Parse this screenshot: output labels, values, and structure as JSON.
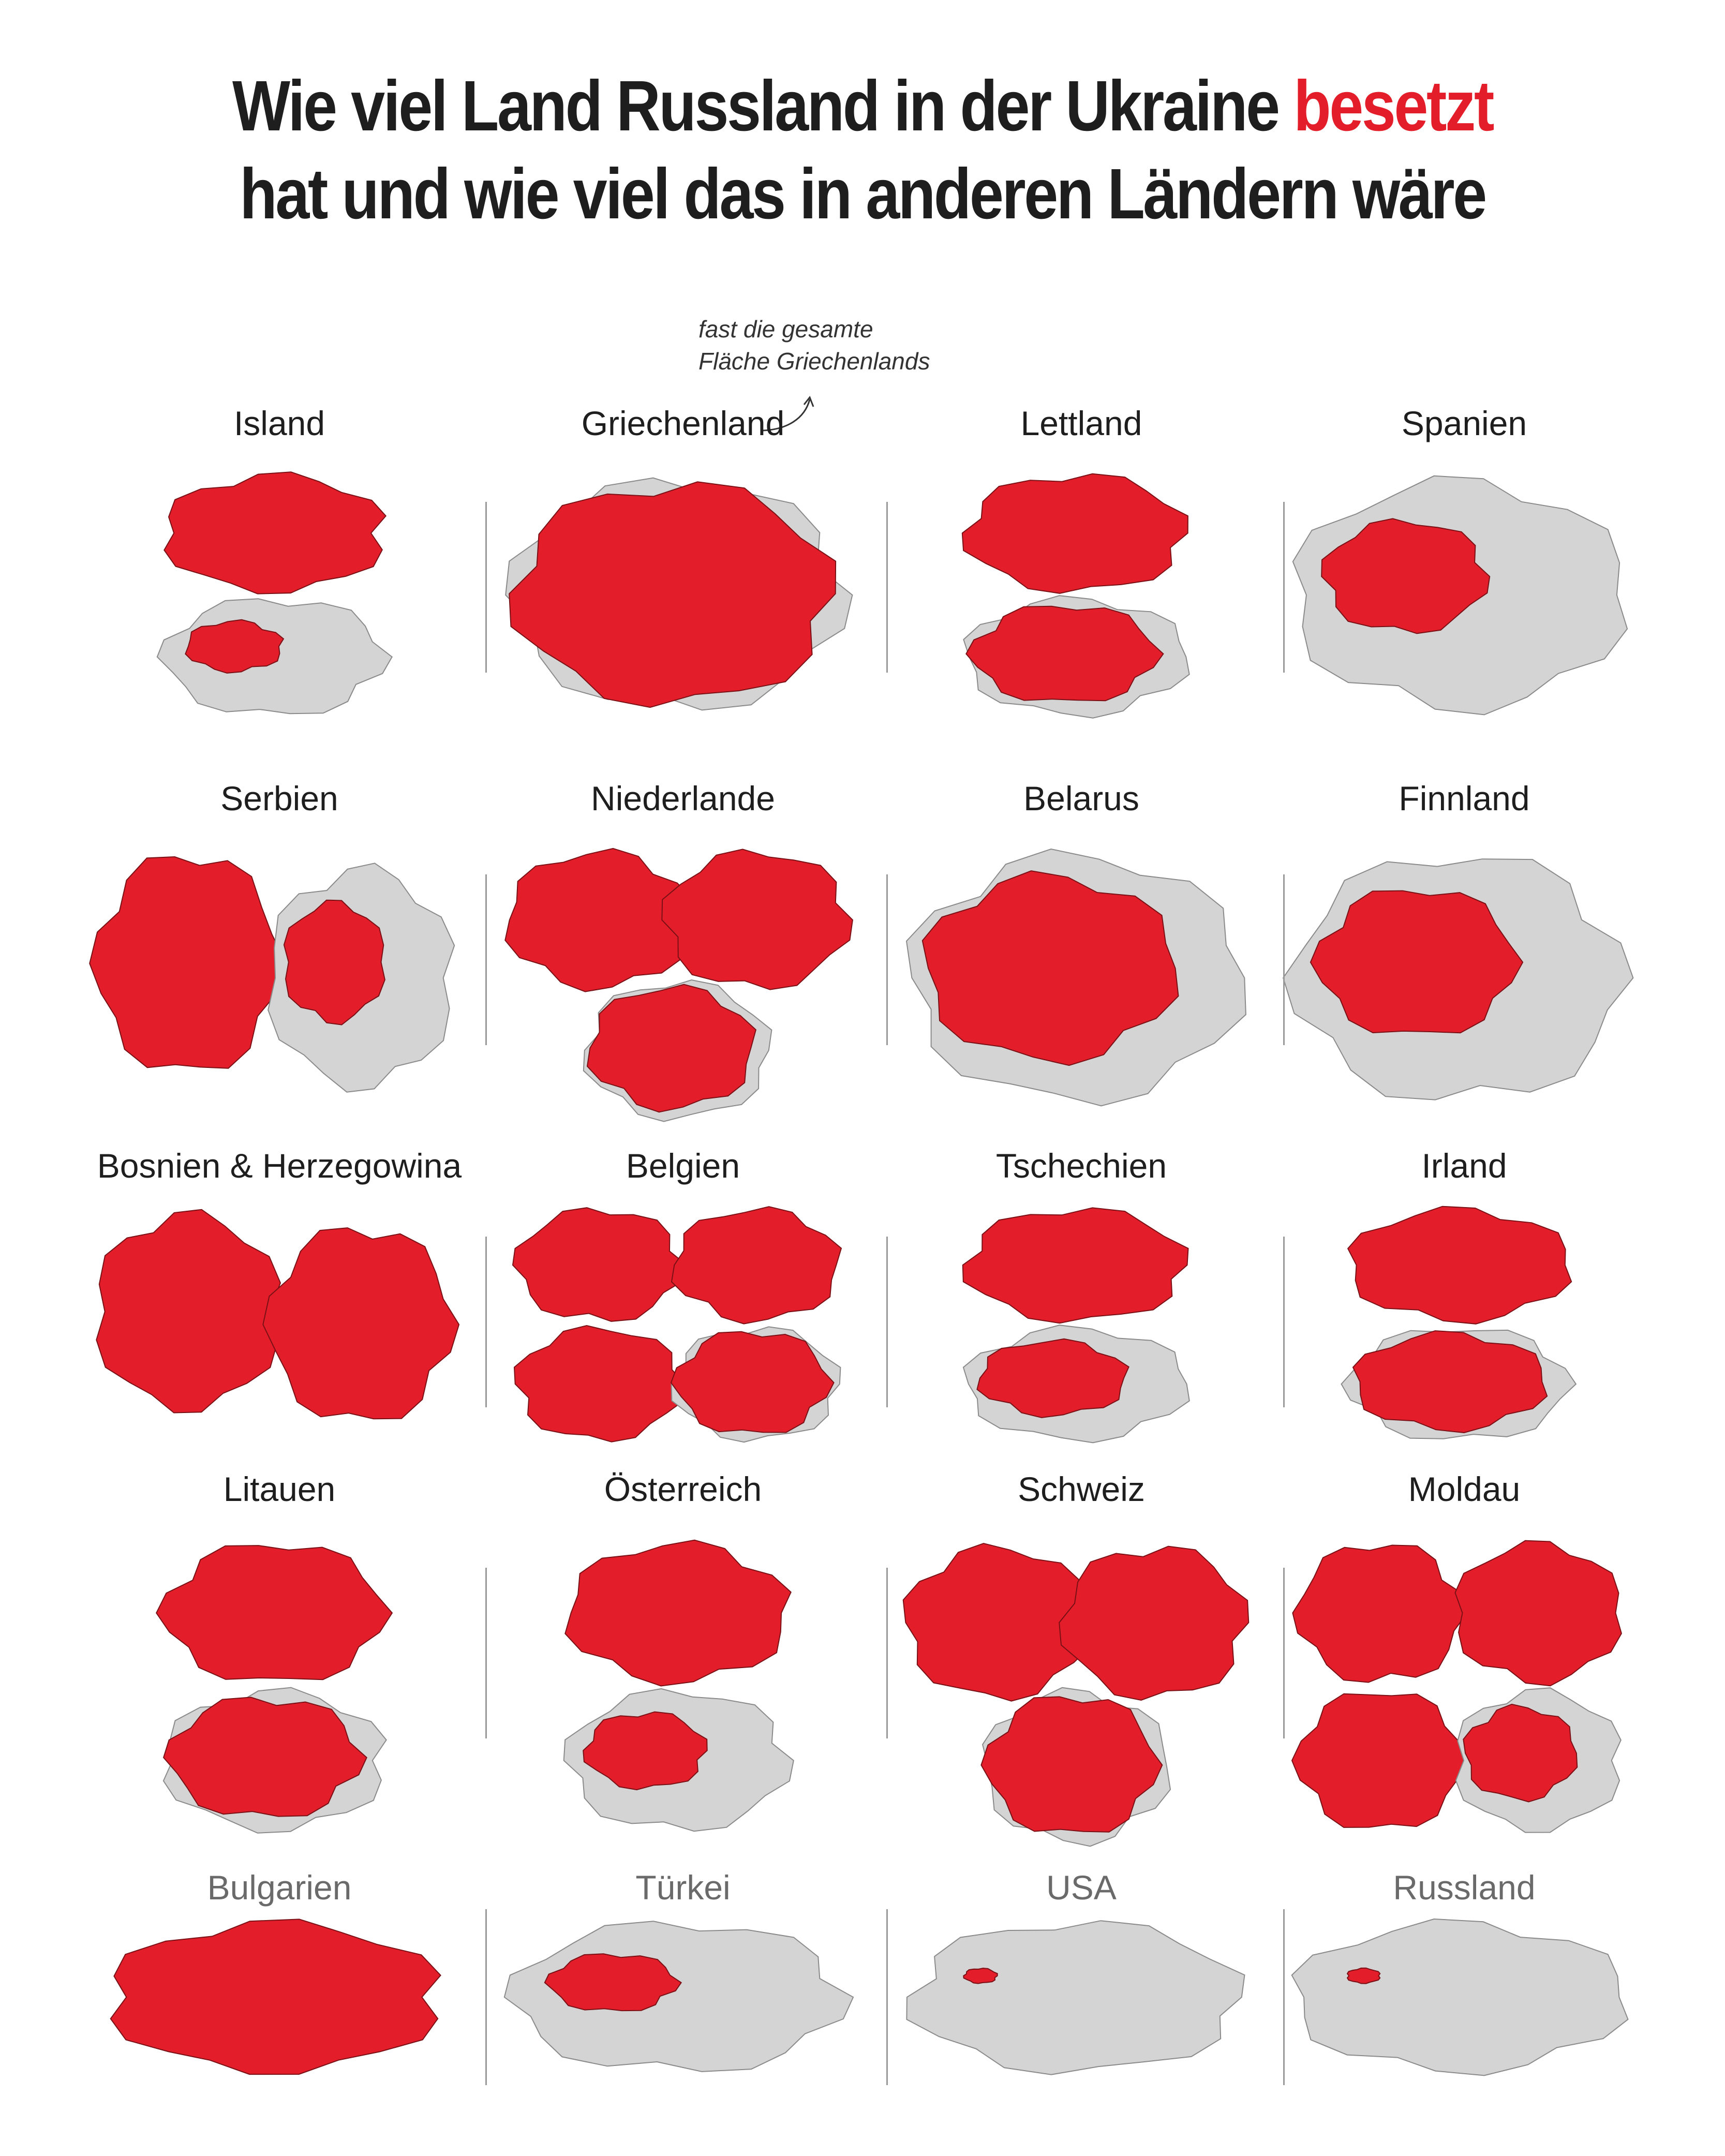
{
  "title": {
    "line1_prefix": "Wie viel Land Russland in der Ukraine",
    "line1_highlight": "besetzt",
    "line2": "hat und wie viel das in anderen Ländern wäre"
  },
  "annotation": {
    "line1": "fast die gesamte",
    "line2": "Fläche Griechenlands"
  },
  "colors": {
    "occupied": "#e31e2a",
    "remaining": "#d4d4d4",
    "text": "#1e1e1e",
    "dim_text": "#6a6a6a"
  },
  "countries": [
    {
      "name": "Island",
      "maps": [
        {
          "share": 1.0
        },
        {
          "share": 0.19
        }
      ]
    },
    {
      "name": "Griechenland",
      "maps": [
        {
          "share": 0.93
        }
      ]
    },
    {
      "name": "Lettland",
      "maps": [
        {
          "share": 1.0
        },
        {
          "share": 0.7
        }
      ]
    },
    {
      "name": "Spanien",
      "maps": [
        {
          "share": 0.24
        }
      ]
    },
    {
      "name": "Serbien",
      "maps": [
        {
          "share": 1.0
        },
        {
          "share": 0.3
        }
      ]
    },
    {
      "name": "Niederlande",
      "maps": [
        {
          "share": 1.0
        },
        {
          "share": 1.0
        },
        {
          "share": 0.8
        }
      ]
    },
    {
      "name": "Belarus",
      "maps": [
        {
          "share": 0.57
        }
      ]
    },
    {
      "name": "Finnland",
      "maps": [
        {
          "share": 0.36
        }
      ]
    },
    {
      "name": "Bosnien & Herzegowina",
      "maps": [
        {
          "share": 1.0
        },
        {
          "share": 1.0
        }
      ]
    },
    {
      "name": "Belgien",
      "maps": [
        {
          "share": 1.0
        },
        {
          "share": 1.0
        },
        {
          "share": 1.0
        },
        {
          "share": 0.85
        }
      ]
    },
    {
      "name": "Tschechien",
      "maps": [
        {
          "share": 1.0
        },
        {
          "share": 0.45
        }
      ]
    },
    {
      "name": "Irland",
      "maps": [
        {
          "share": 1.0
        },
        {
          "share": 0.75
        }
      ]
    },
    {
      "name": "Litauen",
      "maps": [
        {
          "share": 1.0
        },
        {
          "share": 0.75
        }
      ]
    },
    {
      "name": "Österreich",
      "maps": [
        {
          "share": 1.0
        },
        {
          "share": 0.3
        }
      ]
    },
    {
      "name": "Schweiz",
      "maps": [
        {
          "share": 1.0
        },
        {
          "share": 1.0
        },
        {
          "share": 0.85
        }
      ]
    },
    {
      "name": "Moldau",
      "maps": [
        {
          "share": 1.0
        },
        {
          "share": 1.0
        },
        {
          "share": 1.0
        },
        {
          "share": 0.45
        }
      ]
    },
    {
      "name": "Bulgarien",
      "maps": [
        {
          "share": 1.0
        }
      ]
    },
    {
      "name": "Türkei",
      "maps": [
        {
          "share": 0.15
        }
      ]
    },
    {
      "name": "USA",
      "maps": [
        {
          "share": 0.01
        }
      ]
    },
    {
      "name": "Russland",
      "maps": [
        {
          "share": 0.01
        }
      ]
    }
  ]
}
